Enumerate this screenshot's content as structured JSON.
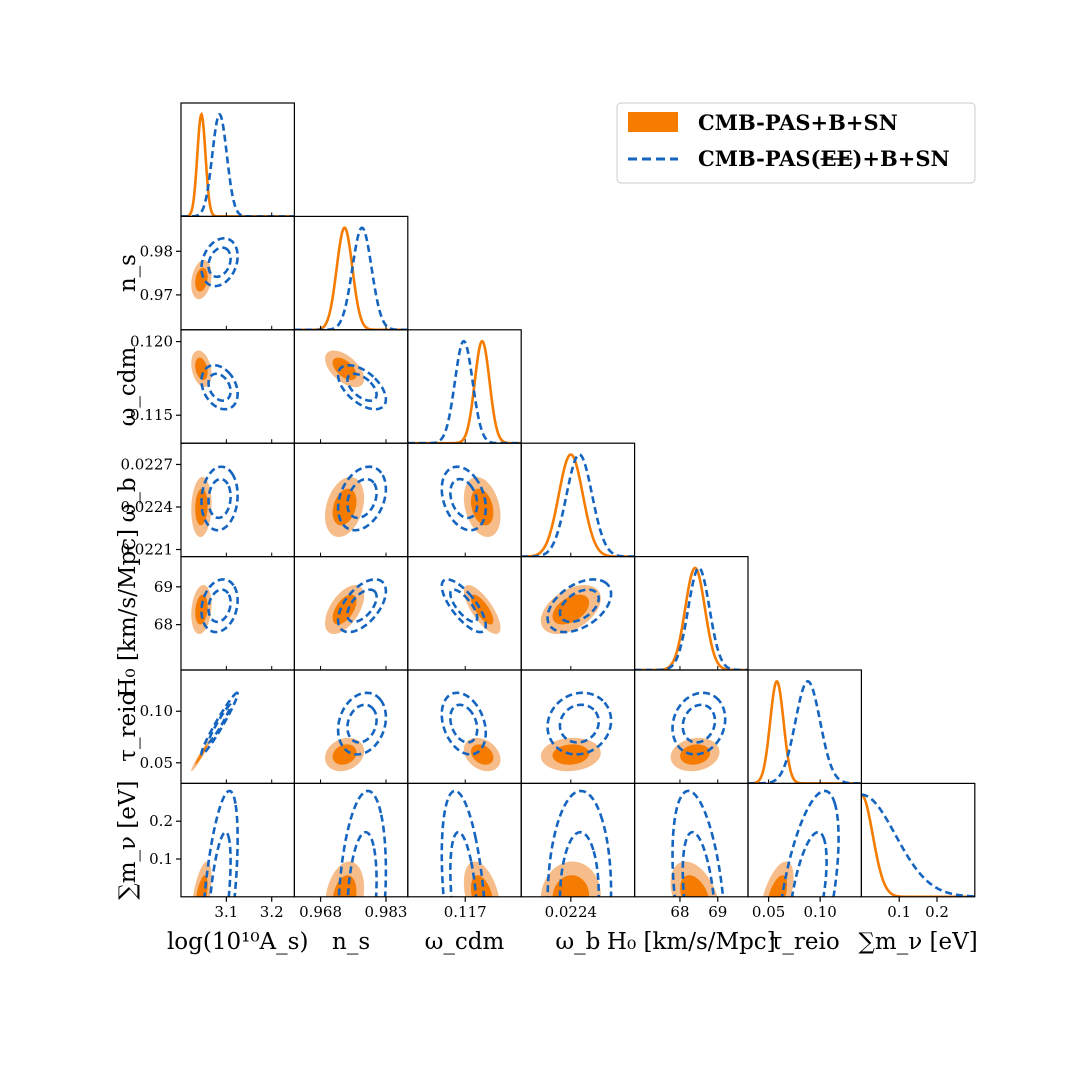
{
  "chart_data": {
    "type": "corner",
    "title": "",
    "params": [
      "logA",
      "ns",
      "wcdm",
      "wb",
      "H0",
      "tau",
      "mnu"
    ],
    "xlabels": [
      "log(10¹⁰A_s)",
      "n_s",
      "ω_cdm",
      "ω_b",
      "H₀ [km/s/Mpc]",
      "τ_reio",
      "∑m_ν [eV]"
    ],
    "ylabels": {
      "ns": "n_s",
      "wcdm": "ω_cdm",
      "wb": "ω_b",
      "H0": "H₀ [km/s/Mpc]",
      "tau": "τ_reio",
      "mnu": "∑m_ν [eV]"
    },
    "ranges": {
      "logA": [
        3.0,
        3.25
      ],
      "ns": [
        0.962,
        0.988
      ],
      "wcdm": [
        0.1131,
        0.1208
      ],
      "wb": [
        0.02205,
        0.02285
      ],
      "H0": [
        66.8,
        69.8
      ],
      "tau": [
        0.03,
        0.14
      ],
      "mnu": [
        0.0,
        0.3
      ]
    },
    "xticks": {
      "logA": [
        {
          "v": 3.1,
          "label": "3.1"
        },
        {
          "v": 3.2,
          "label": "3.2"
        }
      ],
      "ns": [
        {
          "v": 0.968,
          "label": "0.968"
        },
        {
          "v": 0.983,
          "label": "0.983"
        }
      ],
      "wcdm": [
        {
          "v": 0.117,
          "label": "0.117"
        }
      ],
      "wb": [
        {
          "v": 0.0224,
          "label": "0.0224"
        }
      ],
      "H0": [
        {
          "v": 68,
          "label": "68"
        },
        {
          "v": 69,
          "label": "69"
        }
      ],
      "tau": [
        {
          "v": 0.05,
          "label": "0.05"
        },
        {
          "v": 0.1,
          "label": "0.10"
        }
      ],
      "mnu": [
        {
          "v": 0.1,
          "label": "0.1"
        },
        {
          "v": 0.2,
          "label": "0.2"
        }
      ]
    },
    "yticks": {
      "ns": [
        {
          "v": 0.97,
          "label": "0.97"
        },
        {
          "v": 0.98,
          "label": "0.98"
        }
      ],
      "wcdm": [
        {
          "v": 0.115,
          "label": "0.115"
        },
        {
          "v": 0.12,
          "label": "0.120"
        }
      ],
      "wb": [
        {
          "v": 0.0221,
          "label": "0.0221"
        },
        {
          "v": 0.0224,
          "label": "0.0224"
        },
        {
          "v": 0.0227,
          "label": "0.0227"
        }
      ],
      "H0": [
        {
          "v": 68,
          "label": "68"
        },
        {
          "v": 69,
          "label": "69"
        }
      ],
      "tau": [
        {
          "v": 0.05,
          "label": "0.05"
        },
        {
          "v": 0.1,
          "label": "0.10"
        }
      ],
      "mnu": [
        {
          "v": 0.1,
          "label": "0.1"
        },
        {
          "v": 0.2,
          "label": "0.2"
        }
      ]
    },
    "series": [
      {
        "name": "CMB-PAS+B+SN",
        "style": "filled",
        "color": "#f57c00",
        "color_inner": "#f57c00",
        "color_outer": "#f6bd8a",
        "means": {
          "logA": 3.045,
          "ns": 0.9735,
          "wcdm": 0.11815,
          "wb": 0.0224,
          "H0": 68.4,
          "tau": 0.058
        },
        "sigmas": {
          "logA": 0.009,
          "ns": 0.0018,
          "wcdm": 0.0005,
          "wb": 8.5e-05,
          "H0": 0.26,
          "tau": 0.0065
        },
        "mnu": {
          "sigma": 0.03
        }
      },
      {
        "name": "CMB-PAS(EE)+B+SN",
        "style": "dashed",
        "color": "#1565c0",
        "means": {
          "logA": 3.085,
          "ns": 0.9775,
          "wcdm": 0.1169,
          "wb": 0.02246,
          "H0": 68.5,
          "tau": 0.088
        },
        "sigmas": {
          "logA": 0.016,
          "ns": 0.0022,
          "wcdm": 0.0006,
          "wb": 9e-05,
          "H0": 0.28,
          "tau": 0.012
        },
        "mnu": {
          "sigma": 0.09
        }
      }
    ],
    "correlations": {
      "logA|ns": 0.25,
      "logA|wcdm": -0.3,
      "logA|wb": 0.1,
      "logA|H0": 0.2,
      "logA|tau": 0.97,
      "logA|mnu": 0.55,
      "ns|wcdm": -0.55,
      "ns|wb": 0.3,
      "ns|H0": 0.55,
      "ns|tau": 0.2,
      "ns|mnu": 0.25,
      "wcdm|wb": -0.3,
      "wcdm|H0": -0.75,
      "wcdm|tau": -0.3,
      "wcdm|mnu": -0.4,
      "wb|H0": 0.45,
      "wb|tau": 0.1,
      "wb|mnu": 0.05,
      "H0|tau": 0.15,
      "H0|mnu": -0.4,
      "tau|mnu": 0.55
    },
    "legend": {
      "location": "top-right",
      "entries": [
        "CMB-PAS+B+SN",
        "CMB-PAS(EE)+B+SN"
      ],
      "strike_text": "EE"
    }
  }
}
